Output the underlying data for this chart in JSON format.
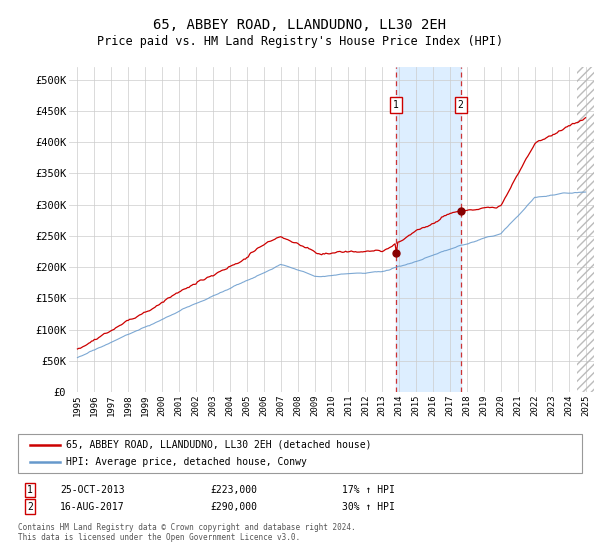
{
  "title": "65, ABBEY ROAD, LLANDUDNO, LL30 2EH",
  "subtitle": "Price paid vs. HM Land Registry's House Price Index (HPI)",
  "title_fontsize": 10,
  "subtitle_fontsize": 8.5,
  "ylabel_ticks": [
    "£0",
    "£50K",
    "£100K",
    "£150K",
    "£200K",
    "£250K",
    "£300K",
    "£350K",
    "£400K",
    "£450K",
    "£500K"
  ],
  "ytick_values": [
    0,
    50000,
    100000,
    150000,
    200000,
    250000,
    300000,
    350000,
    400000,
    450000,
    500000
  ],
  "ylim": [
    0,
    520000
  ],
  "xlim_start": 1994.5,
  "xlim_end": 2025.5,
  "transaction1_date": "25-OCT-2013",
  "transaction1_price": 223000,
  "transaction1_hpi_pct": "17%",
  "transaction1_x": 2013.82,
  "transaction2_date": "16-AUG-2017",
  "transaction2_price": 290000,
  "transaction2_x": 2017.63,
  "transaction2_hpi_pct": "30%",
  "shade_start": 2013.82,
  "shade_end": 2017.63,
  "hatch_start": 2024.5,
  "red_color": "#cc0000",
  "blue_color": "#6699cc",
  "shade_color": "#ddeeff",
  "legend_label_red": "65, ABBEY ROAD, LLANDUDNO, LL30 2EH (detached house)",
  "legend_label_blue": "HPI: Average price, detached house, Conwy",
  "footer_line1": "Contains HM Land Registry data © Crown copyright and database right 2024.",
  "footer_line2": "This data is licensed under the Open Government Licence v3.0.",
  "bg_color": "#ffffff",
  "plot_bg_color": "#ffffff",
  "grid_color": "#cccccc"
}
